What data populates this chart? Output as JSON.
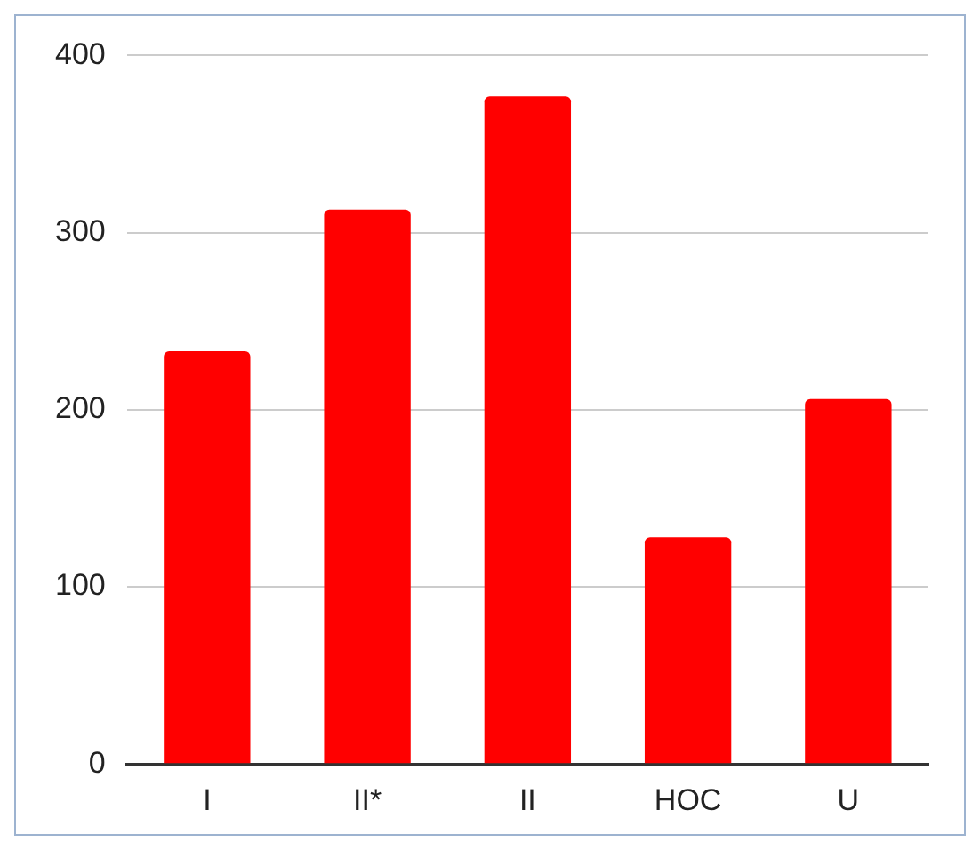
{
  "chart_data": {
    "type": "bar",
    "categories": [
      "I",
      "II*",
      "II",
      "HOC",
      "U"
    ],
    "values": [
      233,
      313,
      377,
      128,
      206
    ],
    "color": "#ff0000",
    "ylim": [
      0,
      400
    ],
    "yticks": [
      0,
      100,
      200,
      300,
      400
    ],
    "grid": "y",
    "legend": false
  }
}
